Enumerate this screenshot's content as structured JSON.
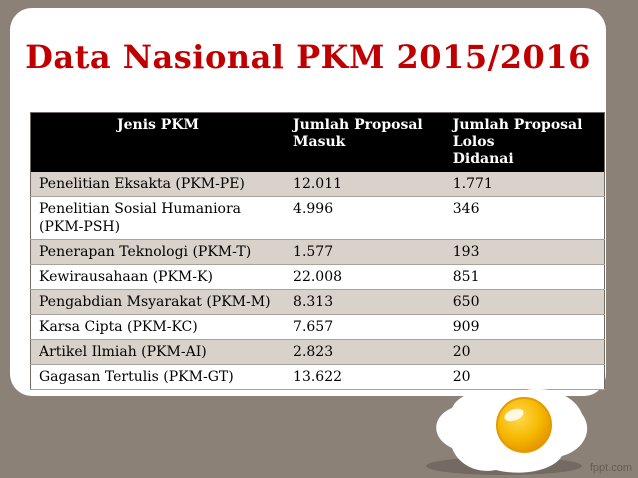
{
  "slide": {
    "title": "Data Nasional PKM 2015/2016",
    "watermark": "fppt.com"
  },
  "table": {
    "headers": [
      "Jenis PKM",
      "Jumlah Proposal\nMasuk",
      "Jumlah Proposal Lolos\nDidanai"
    ],
    "rows": [
      [
        "Penelitian Eksakta (PKM-PE)",
        "12.011",
        "1.771"
      ],
      [
        "Penelitian Sosial Humaniora (PKM-PSH)",
        "4.996",
        "346"
      ],
      [
        "Penerapan Teknologi (PKM-T)",
        "1.577",
        "193"
      ],
      [
        "Kewirausahaan (PKM-K)",
        "22.008",
        "851"
      ],
      [
        "Pengabdian Msyarakat (PKM-M)",
        "8.313",
        "650"
      ],
      [
        "Karsa Cipta (PKM-KC)",
        "7.657",
        "909"
      ],
      [
        "Artikel Ilmiah (PKM-AI)",
        "2.823",
        "20"
      ],
      [
        "Gagasan Tertulis (PKM-GT)",
        "13.622",
        "20"
      ]
    ]
  },
  "colors": {
    "background": "#8b8177",
    "title": "#c00000",
    "header_bg": "#000000",
    "stripe": "#d8d2cb",
    "yolk": "#f5b800"
  }
}
